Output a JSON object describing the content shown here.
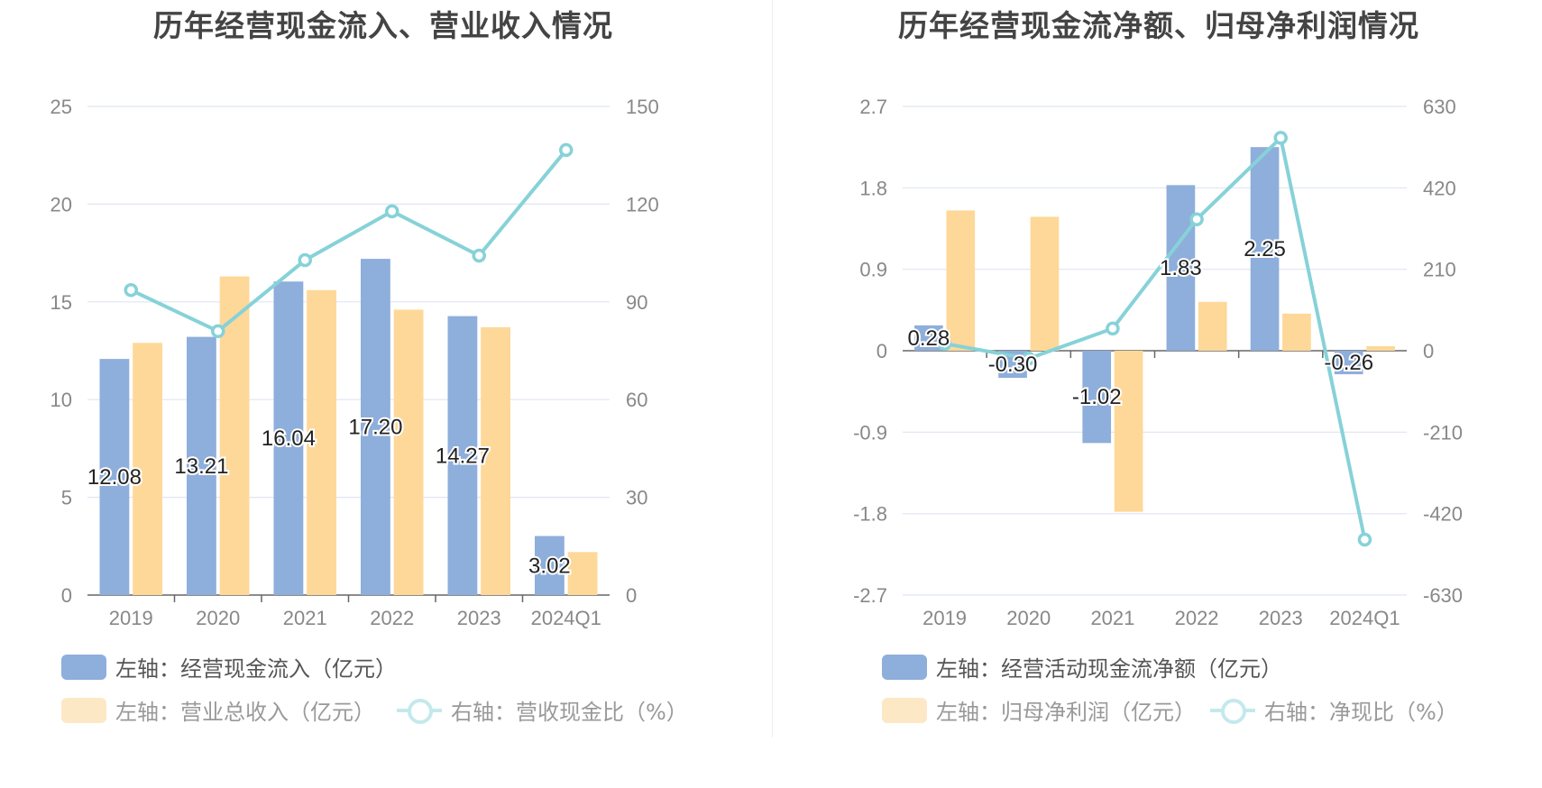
{
  "colors": {
    "bar_a": "#8eaedb",
    "bar_b": "#fed898",
    "line": "#86d2d8",
    "grid": "#dfe5f2",
    "axis": "#666666",
    "tick": "#888888"
  },
  "charts": [
    {
      "title": "历年经营现金流入、营业收入情况",
      "chart_data": {
        "type": "bar",
        "categories": [
          "2019",
          "2020",
          "2021",
          "2022",
          "2023",
          "2024Q1"
        ],
        "left_axis": {
          "ticks": [
            "0",
            "5",
            "10",
            "15",
            "20",
            "25"
          ],
          "min": 0,
          "max": 25
        },
        "right_axis": {
          "ticks": [
            "0",
            "30",
            "60",
            "90",
            "120",
            "150"
          ],
          "min": 0,
          "max": 150
        },
        "series": [
          {
            "name": "左轴：经营现金流入（亿元）",
            "axis": "left",
            "kind": "bar",
            "values": [
              12.08,
              13.21,
              16.04,
              17.2,
              14.27,
              3.02
            ],
            "labels": [
              "12.08",
              "13.21",
              "16.04",
              "17.20",
              "14.27",
              "3.02"
            ]
          },
          {
            "name": "左轴：营业总收入（亿元）",
            "axis": "left",
            "kind": "bar",
            "values": [
              12.9,
              16.3,
              15.6,
              14.6,
              13.7,
              2.2
            ]
          },
          {
            "name": "右轴：营收现金比（%）",
            "axis": "right",
            "kind": "line",
            "values": [
              93.6,
              81.0,
              102.8,
              117.8,
              104.2,
              136.6
            ]
          }
        ],
        "grid": true,
        "legend_position": "bottom"
      }
    },
    {
      "title": "历年经营现金流净额、归母净利润情况",
      "chart_data": {
        "type": "bar",
        "categories": [
          "2019",
          "2020",
          "2021",
          "2022",
          "2023",
          "2024Q1"
        ],
        "left_axis": {
          "ticks": [
            "-2.7",
            "-1.8",
            "-0.9",
            "0",
            "0.9",
            "1.8",
            "2.7"
          ],
          "min": -2.7,
          "max": 2.7
        },
        "right_axis": {
          "ticks": [
            "-630",
            "-420",
            "-210",
            "0",
            "210",
            "420",
            "630"
          ],
          "min": -630,
          "max": 630
        },
        "series": [
          {
            "name": "左轴：经营活动现金流净额（亿元）",
            "axis": "left",
            "kind": "bar",
            "values": [
              0.28,
              -0.3,
              -1.02,
              1.83,
              2.25,
              -0.26
            ],
            "labels": [
              "0.28",
              "-0.30",
              "-1.02",
              "1.83",
              "2.25",
              "-0.26"
            ]
          },
          {
            "name": "左轴：归母净利润（亿元）",
            "axis": "left",
            "kind": "bar",
            "values": [
              1.55,
              1.48,
              -1.78,
              0.54,
              0.41,
              0.05
            ]
          },
          {
            "name": "右轴：净现比（%）",
            "axis": "right",
            "kind": "line",
            "values": [
              18.1,
              -20.3,
              57.3,
              338.9,
              548.8,
              -487.0
            ]
          }
        ],
        "grid": true,
        "legend_position": "bottom"
      }
    }
  ]
}
